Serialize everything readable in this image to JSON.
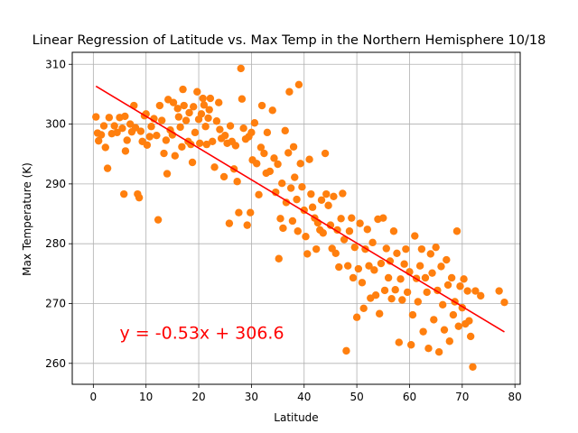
{
  "chart_data": {
    "type": "scatter",
    "title": "Linear Regression of Latitude vs. Max Temp in the Northern Hemisphere 10/18",
    "xlabel": "Latitude",
    "ylabel": "Max Temperature (K)",
    "xlim": [
      -4,
      81
    ],
    "ylim": [
      256.5,
      312
    ],
    "x_ticks": [
      0,
      10,
      20,
      30,
      40,
      50,
      60,
      70,
      80
    ],
    "y_ticks": [
      260,
      270,
      280,
      290,
      300,
      310
    ],
    "grid": true,
    "marker_color": "#ff7f0e",
    "regression": {
      "slope": -0.53,
      "intercept": 306.6,
      "x_range": [
        0.5,
        78
      ],
      "color": "#ff0000",
      "equation_label": "y = -0.53x + 306.6",
      "label_at": [
        5,
        265
      ]
    },
    "points": [
      [
        0.5,
        301.2
      ],
      [
        0.8,
        298.5
      ],
      [
        1,
        297.2
      ],
      [
        1.5,
        298.2
      ],
      [
        2,
        299.7
      ],
      [
        2.3,
        296.1
      ],
      [
        2.7,
        292.6
      ],
      [
        3,
        301.1
      ],
      [
        3.5,
        298.4
      ],
      [
        4,
        299.7
      ],
      [
        4.5,
        298.6
      ],
      [
        5,
        301.1
      ],
      [
        5.5,
        299.3
      ],
      [
        5.8,
        288.3
      ],
      [
        6,
        301.3
      ],
      [
        6.1,
        295.5
      ],
      [
        6.4,
        297.3
      ],
      [
        7,
        300
      ],
      [
        7.3,
        298.7
      ],
      [
        7.7,
        303.1
      ],
      [
        8,
        299.4
      ],
      [
        8.4,
        288.3
      ],
      [
        8.7,
        287.7
      ],
      [
        9,
        298.8
      ],
      [
        9.3,
        297.1
      ],
      [
        9.7,
        301.4
      ],
      [
        10,
        301.7
      ],
      [
        10.2,
        296.5
      ],
      [
        10.7,
        297.9
      ],
      [
        11,
        299.6
      ],
      [
        11.5,
        300.9
      ],
      [
        12,
        298.1
      ],
      [
        12.3,
        284
      ],
      [
        12.6,
        303.1
      ],
      [
        13,
        300.6
      ],
      [
        13.4,
        295.1
      ],
      [
        13.8,
        297.3
      ],
      [
        14,
        291.7
      ],
      [
        14.2,
        304.1
      ],
      [
        14.6,
        299
      ],
      [
        15,
        298.2
      ],
      [
        15.2,
        303.6
      ],
      [
        15.5,
        294.7
      ],
      [
        16,
        302.6
      ],
      [
        16.2,
        301.2
      ],
      [
        16.5,
        299.5
      ],
      [
        16.8,
        296.2
      ],
      [
        17,
        305.8
      ],
      [
        17.2,
        303.1
      ],
      [
        17.6,
        300.6
      ],
      [
        18,
        297.1
      ],
      [
        18.2,
        301.9
      ],
      [
        18.5,
        296.6
      ],
      [
        18.8,
        293.6
      ],
      [
        19,
        302.9
      ],
      [
        19.3,
        298.6
      ],
      [
        19.7,
        305.4
      ],
      [
        20,
        300.8
      ],
      [
        20.2,
        296.8
      ],
      [
        20.5,
        301.7
      ],
      [
        20.8,
        304.3
      ],
      [
        21,
        303.2
      ],
      [
        21.3,
        299.6
      ],
      [
        21.5,
        296.6
      ],
      [
        21.8,
        301
      ],
      [
        22,
        302.4
      ],
      [
        22.2,
        304.3
      ],
      [
        22.6,
        297.1
      ],
      [
        23,
        292.8
      ],
      [
        23.4,
        300.5
      ],
      [
        23.8,
        303.6
      ],
      [
        24,
        299.1
      ],
      [
        24.3,
        297.6
      ],
      [
        24.8,
        291.2
      ],
      [
        25,
        298.1
      ],
      [
        25.4,
        296.8
      ],
      [
        25.8,
        283.4
      ],
      [
        26,
        299.7
      ],
      [
        26.3,
        297.1
      ],
      [
        26.7,
        292.5
      ],
      [
        27,
        296.4
      ],
      [
        27.3,
        290.4
      ],
      [
        27.6,
        285.2
      ],
      [
        28,
        309.3
      ],
      [
        28.2,
        304.2
      ],
      [
        28.5,
        299.3
      ],
      [
        28.9,
        297.5
      ],
      [
        29.2,
        283.1
      ],
      [
        29.5,
        297.9
      ],
      [
        29.8,
        285.2
      ],
      [
        30,
        298.6
      ],
      [
        30.2,
        294
      ],
      [
        30.6,
        300.2
      ],
      [
        31,
        293.4
      ],
      [
        31.4,
        288.2
      ],
      [
        31.8,
        296.1
      ],
      [
        32,
        303.1
      ],
      [
        32.4,
        295.1
      ],
      [
        32.8,
        291.8
      ],
      [
        33,
        298.6
      ],
      [
        33.5,
        292.1
      ],
      [
        34,
        302.3
      ],
      [
        34.3,
        294.3
      ],
      [
        34.6,
        288.6
      ],
      [
        35,
        293.3
      ],
      [
        35.2,
        277.5
      ],
      [
        35.5,
        284.2
      ],
      [
        35.8,
        290.1
      ],
      [
        36,
        282.6
      ],
      [
        36.4,
        298.9
      ],
      [
        36.6,
        286.9
      ],
      [
        37,
        295.2
      ],
      [
        37.2,
        305.4
      ],
      [
        37.5,
        289.3
      ],
      [
        37.8,
        283.8
      ],
      [
        38,
        296.2
      ],
      [
        38.2,
        291.1
      ],
      [
        38.6,
        287.4
      ],
      [
        38.8,
        282.1
      ],
      [
        39,
        306.6
      ],
      [
        39.3,
        293.4
      ],
      [
        39.6,
        289.5
      ],
      [
        40,
        285.6
      ],
      [
        40.3,
        281.2
      ],
      [
        40.6,
        278.3
      ],
      [
        41,
        294.1
      ],
      [
        41.3,
        288.3
      ],
      [
        41.6,
        286.1
      ],
      [
        42,
        284.3
      ],
      [
        42.3,
        279.1
      ],
      [
        42.6,
        283.5
      ],
      [
        43,
        282.3
      ],
      [
        43.3,
        287.3
      ],
      [
        43.6,
        281.8
      ],
      [
        44,
        295.1
      ],
      [
        44.2,
        288.3
      ],
      [
        44.6,
        286.4
      ],
      [
        45,
        283.1
      ],
      [
        45.3,
        279.2
      ],
      [
        45.6,
        287.9
      ],
      [
        46,
        278.4
      ],
      [
        46.3,
        282.3
      ],
      [
        46.6,
        276.1
      ],
      [
        47,
        284.2
      ],
      [
        47.3,
        288.4
      ],
      [
        47.6,
        280.7
      ],
      [
        48,
        262.1
      ],
      [
        48.3,
        276.3
      ],
      [
        48.6,
        282.1
      ],
      [
        49,
        284.3
      ],
      [
        49.3,
        274.3
      ],
      [
        49.6,
        279.4
      ],
      [
        50,
        267.7
      ],
      [
        50.3,
        275.8
      ],
      [
        50.6,
        283.4
      ],
      [
        51,
        273.5
      ],
      [
        51.3,
        269.2
      ],
      [
        51.6,
        279.1
      ],
      [
        52,
        282.4
      ],
      [
        52.3,
        276.3
      ],
      [
        52.6,
        270.9
      ],
      [
        53,
        280.2
      ],
      [
        53.3,
        275.6
      ],
      [
        53.6,
        271.4
      ],
      [
        54,
        284.1
      ],
      [
        54.3,
        268.3
      ],
      [
        54.6,
        276.7
      ],
      [
        55,
        284.3
      ],
      [
        55.3,
        272.2
      ],
      [
        55.6,
        279.2
      ],
      [
        56,
        274.3
      ],
      [
        56.3,
        277.1
      ],
      [
        56.6,
        270.8
      ],
      [
        57,
        282.1
      ],
      [
        57.3,
        272.3
      ],
      [
        57.6,
        278.4
      ],
      [
        58,
        263.5
      ],
      [
        58.3,
        274.1
      ],
      [
        58.6,
        270.6
      ],
      [
        59,
        276.6
      ],
      [
        59.3,
        279.1
      ],
      [
        59.6,
        271.9
      ],
      [
        60,
        275.3
      ],
      [
        60.3,
        263.1
      ],
      [
        60.6,
        268.1
      ],
      [
        61,
        281.3
      ],
      [
        61.3,
        274.2
      ],
      [
        61.6,
        270.3
      ],
      [
        62,
        276.3
      ],
      [
        62.3,
        279.1
      ],
      [
        62.6,
        265.3
      ],
      [
        63,
        274.3
      ],
      [
        63.3,
        271.9
      ],
      [
        63.6,
        262.5
      ],
      [
        64,
        278.3
      ],
      [
        64.3,
        275.1
      ],
      [
        64.6,
        267.3
      ],
      [
        65,
        279.4
      ],
      [
        65.3,
        272.2
      ],
      [
        65.6,
        261.9
      ],
      [
        66,
        276.2
      ],
      [
        66.3,
        269.8
      ],
      [
        66.6,
        265.6
      ],
      [
        67,
        277.3
      ],
      [
        67.3,
        273.1
      ],
      [
        67.6,
        263.7
      ],
      [
        68,
        274.3
      ],
      [
        68.3,
        268.1
      ],
      [
        68.6,
        270.3
      ],
      [
        69,
        282.1
      ],
      [
        69.3,
        266.2
      ],
      [
        69.6,
        272.9
      ],
      [
        70,
        269.3
      ],
      [
        70.3,
        274.1
      ],
      [
        70.6,
        266.6
      ],
      [
        71,
        272.1
      ],
      [
        71.3,
        267.1
      ],
      [
        71.6,
        264.5
      ],
      [
        72,
        259.4
      ],
      [
        72.5,
        272.1
      ],
      [
        73.5,
        271.3
      ],
      [
        77,
        272.1
      ],
      [
        78,
        270.2
      ]
    ]
  }
}
